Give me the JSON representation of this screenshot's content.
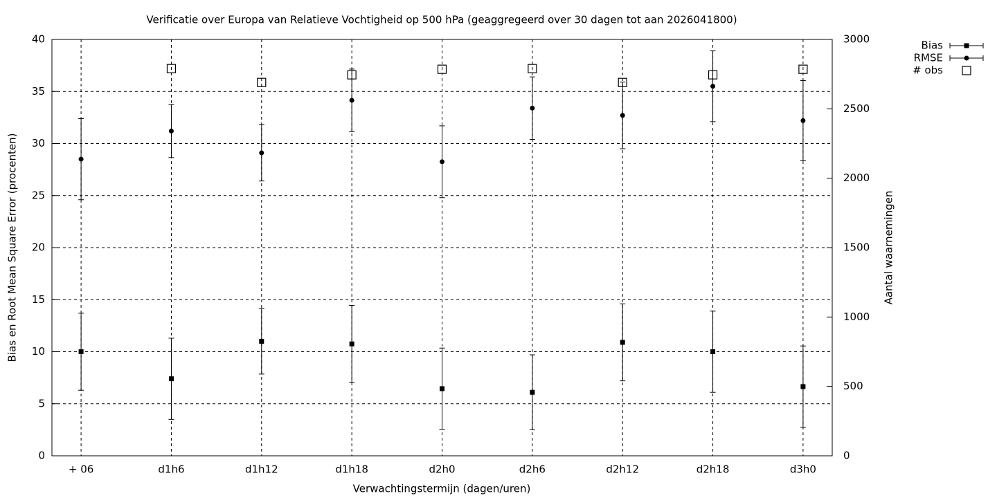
{
  "chart_data": {
    "type": "scatter",
    "title": "Verificatie over Europa van Relatieve Vochtigheid op 500 hPa (geaggregeerd over 30 dagen tot aan 2026041800)",
    "x_label": "Verwachtingstermijn (dagen/uren)",
    "y_label": "Bias en Root Mean Square Error (procenten)",
    "y2_label": "Aantal waarnemingen",
    "categories": [
      "+ 06",
      "d1h6",
      "d1h12",
      "d1h18",
      "d2h0",
      "d2h6",
      "d2h12",
      "d2h18",
      "d3h0"
    ],
    "ylim": [
      0,
      40
    ],
    "yticks": [
      0,
      5,
      10,
      15,
      20,
      25,
      30,
      35,
      40
    ],
    "y2lim": [
      0,
      3000
    ],
    "y2ticks": [
      0,
      500,
      1000,
      1500,
      2000,
      2500,
      3000
    ],
    "grid": true,
    "legend": "top-right",
    "series": [
      {
        "name": "Bias",
        "color": "#000000",
        "marker": "square",
        "values": [
          10.0,
          7.4,
          11.0,
          10.75,
          6.45,
          6.1,
          10.9,
          10.0,
          6.65
        ],
        "errors": [
          3.7,
          3.9,
          3.15,
          3.7,
          3.9,
          3.6,
          3.7,
          3.9,
          3.9
        ]
      },
      {
        "name": "RMSE",
        "color": "#000000",
        "marker": "circle",
        "values": [
          28.5,
          31.2,
          29.1,
          34.15,
          28.25,
          33.4,
          32.7,
          35.5,
          32.2
        ],
        "errors": [
          3.9,
          2.55,
          2.7,
          3.0,
          3.45,
          3.0,
          3.2,
          3.4,
          3.85
        ]
      },
      {
        "name": "# obs",
        "color": "#000000",
        "marker": "open-square",
        "axis": "y2",
        "values": [
          null,
          2790,
          2690,
          2745,
          2785,
          2790,
          2690,
          2745,
          2785
        ]
      }
    ]
  }
}
